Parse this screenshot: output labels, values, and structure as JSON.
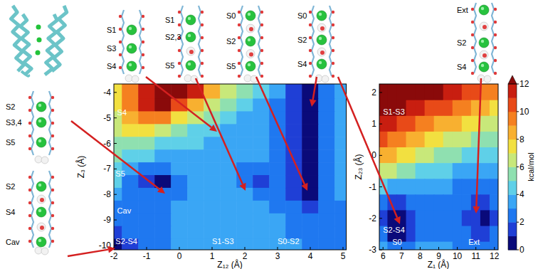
{
  "chart_data": [
    {
      "type": "heatmap",
      "x_label": "Z₁₂ (Å)",
      "y_label": "Z₃ (Å)",
      "xlim": [
        -2,
        5.1
      ],
      "ylim": [
        -10.17,
        -3.67
      ],
      "xticks": [
        -2,
        -1,
        0,
        1,
        2,
        3,
        4,
        5
      ],
      "yticks": [
        -4,
        -5,
        -6,
        -7,
        -8,
        -9,
        -10
      ],
      "x": [
        -2,
        -1.5,
        -1,
        -0.5,
        0,
        0.5,
        1,
        1.5,
        2,
        2.5,
        3,
        3.5,
        4,
        4.5,
        5
      ],
      "y": [
        -4,
        -4.5,
        -5,
        -5.5,
        -6,
        -6.5,
        -7,
        -7.5,
        -8,
        -8.5,
        -9,
        -9.5,
        -10
      ],
      "z": [
        [
          7.5,
          9.5,
          11.5,
          12.5,
          12.5,
          11,
          8,
          6,
          5,
          4,
          3,
          1,
          0.5,
          2,
          3
        ],
        [
          7,
          9,
          11,
          12,
          10,
          8,
          6,
          5,
          4,
          3.5,
          2.5,
          1,
          0.3,
          2,
          3
        ],
        [
          6,
          8,
          9,
          9,
          7,
          6,
          5,
          4,
          3.5,
          3,
          2.5,
          1,
          0.3,
          2,
          3
        ],
        [
          6,
          7,
          7,
          6,
          5,
          4.5,
          4,
          3.5,
          3,
          3,
          2.5,
          1,
          0.5,
          2,
          3
        ],
        [
          5,
          5,
          5,
          4.5,
          4,
          4,
          3.5,
          3,
          3,
          3,
          2,
          1,
          0.8,
          2,
          3
        ],
        [
          5,
          4,
          4,
          3.5,
          3,
          3,
          3,
          3,
          3,
          3,
          2,
          1,
          0.8,
          2,
          3
        ],
        [
          4,
          3,
          2.5,
          2,
          3,
          3,
          3,
          3,
          2.5,
          2,
          2,
          1,
          0.8,
          2,
          3
        ],
        [
          4,
          2,
          1,
          0.8,
          2,
          3,
          3,
          3,
          2,
          1.5,
          2,
          1,
          0.8,
          2,
          3
        ],
        [
          3,
          2,
          2,
          2,
          2.5,
          3,
          3,
          3,
          3,
          2,
          2,
          1,
          0.8,
          2,
          3
        ],
        [
          2,
          2,
          2,
          2,
          3,
          3,
          3,
          3,
          3,
          3,
          2,
          2,
          1,
          2,
          2
        ],
        [
          2,
          2,
          2,
          2,
          3,
          3,
          3,
          3,
          3,
          3,
          3,
          2,
          2,
          2,
          2
        ],
        [
          1.5,
          2,
          2,
          2,
          3,
          3,
          3,
          3,
          3,
          3,
          3,
          2,
          2,
          2,
          2
        ],
        [
          0.5,
          1,
          2,
          2,
          3,
          3,
          3,
          3,
          3,
          3,
          3,
          3,
          2,
          2,
          2
        ]
      ],
      "annotations": [
        {
          "text": "S4",
          "x": -1.9,
          "y": -4.9
        },
        {
          "text": "S5",
          "x": -1.95,
          "y": -7.3
        },
        {
          "text": "Cav",
          "x": -1.9,
          "y": -8.75
        },
        {
          "text": "S2-S4",
          "x": -1.95,
          "y": -9.95
        },
        {
          "text": "S1-S3",
          "x": 1.0,
          "y": -9.95
        },
        {
          "text": "S0-S2",
          "x": 3.0,
          "y": -9.95
        }
      ]
    },
    {
      "type": "heatmap",
      "x_label": "Z₁ (Å)",
      "y_label": "Z₂₃ (Å)",
      "xlim": [
        5.8,
        12.2
      ],
      "ylim": [
        -3,
        2.27
      ],
      "xticks": [
        6,
        7,
        8,
        9,
        10,
        11,
        12
      ],
      "yticks": [
        -3,
        -2,
        -1,
        0,
        1,
        2
      ],
      "x": [
        6,
        6.5,
        7,
        7.5,
        8,
        8.5,
        9,
        9.5,
        10,
        10.5,
        11,
        11.5,
        12
      ],
      "y": [
        2,
        1.5,
        1,
        0.5,
        0,
        -0.5,
        -1,
        -1.5,
        -2,
        -2.5,
        -3
      ],
      "z": [
        [
          12.5,
          12.5,
          12.5,
          12.5,
          12,
          12,
          12,
          11,
          11,
          10,
          10,
          9,
          9
        ],
        [
          12,
          12,
          12,
          11,
          11,
          10,
          10,
          10,
          9,
          9,
          8,
          8,
          7
        ],
        [
          11,
          11,
          10,
          10,
          9,
          9,
          8,
          8,
          8,
          7,
          7,
          6,
          6
        ],
        [
          10,
          9,
          9,
          8,
          8,
          7,
          7,
          6,
          6,
          6,
          5,
          5,
          5
        ],
        [
          8,
          8,
          7,
          7,
          6,
          6,
          5,
          5,
          5,
          4,
          4,
          4,
          4
        ],
        [
          6,
          6,
          5,
          5,
          4,
          4,
          4,
          4,
          3,
          3,
          3,
          3,
          3
        ],
        [
          4,
          3,
          3,
          3,
          3,
          3,
          3,
          3,
          2.5,
          2.5,
          2.5,
          2.5,
          2.5
        ],
        [
          2,
          1,
          1,
          2,
          2,
          2,
          2,
          2,
          2,
          2,
          1.5,
          1.5,
          2
        ],
        [
          1,
          0.3,
          0.3,
          1,
          2,
          2,
          2,
          2,
          2,
          1.5,
          1,
          0.8,
          1.5
        ],
        [
          2,
          0.5,
          0.5,
          1.5,
          2,
          2,
          2,
          2,
          2,
          2,
          1.5,
          1.5,
          2
        ],
        [
          3,
          2,
          2,
          2,
          3,
          3,
          3,
          3,
          2.5,
          2.5,
          2,
          2,
          2
        ]
      ],
      "annotations": [
        {
          "text": "S1-S3",
          "x": 6.0,
          "y": 1.3
        },
        {
          "text": "S2-S4",
          "x": 6.0,
          "y": -2.45
        },
        {
          "text": "S0",
          "x": 6.5,
          "y": -2.85
        },
        {
          "text": "Ext",
          "x": 10.6,
          "y": -2.85
        }
      ],
      "colorbar": {
        "label": "kcal/mol",
        "range": [
          0,
          12
        ],
        "ticks": [
          0,
          2,
          4,
          6,
          8,
          10,
          12
        ]
      }
    }
  ],
  "structures": [
    {
      "labels": [
        "S1",
        "S3",
        "S4"
      ]
    },
    {
      "labels": [
        "S1",
        "S2,3",
        "S5"
      ]
    },
    {
      "labels": [
        "S0",
        "S2",
        "S5"
      ]
    },
    {
      "labels": [
        "S0",
        "S2",
        "S4"
      ]
    },
    {
      "labels": [
        "Ext",
        "S2",
        "S4"
      ]
    },
    {
      "labels": [
        "S2",
        "S3,4",
        "S5"
      ]
    },
    {
      "labels": [
        "S2",
        "S4",
        "Cav"
      ]
    }
  ]
}
